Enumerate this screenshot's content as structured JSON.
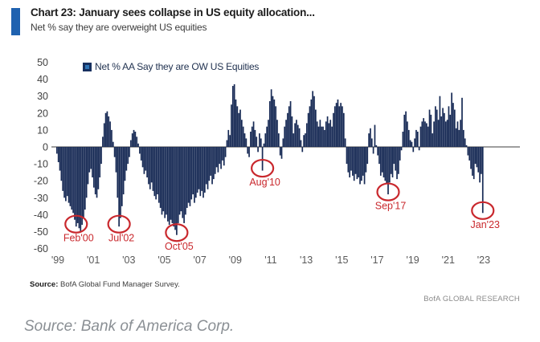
{
  "header": {
    "title": "Chart 23: January sees collapse in US equity allocation...",
    "subtitle": "Net % say they are overweight US equities"
  },
  "chart_data": {
    "type": "bar",
    "title": "Chart 23: January sees collapse in US equity allocation...",
    "subtitle": "Net % say they are overweight US equities",
    "legend": "Net % AA Say they are OW US Equities",
    "frequency": "monthly",
    "x_start": "1999-01",
    "x_end": "2023-01",
    "ylim": [
      -60,
      50
    ],
    "grid": "off",
    "legend_position": "top-center",
    "bar_color": "#172a55",
    "annotation_color": "#c9282d",
    "axis_line_color": "#7f7f7f",
    "yticks": [
      50,
      40,
      30,
      20,
      10,
      0,
      -10,
      -20,
      -30,
      -40,
      -50,
      -60
    ],
    "xtick_years": [
      1999,
      2001,
      2003,
      2005,
      2007,
      2009,
      2011,
      2013,
      2015,
      2017,
      2019,
      2021,
      2023
    ],
    "xtick_labels": [
      "'99",
      "'01",
      "'03",
      "'05",
      "'07",
      "'09",
      "'11",
      "'13",
      "'15",
      "'17",
      "'19",
      "'21",
      "'23"
    ],
    "values": [
      -4,
      -9,
      -14,
      -20,
      -26,
      -30,
      -32,
      -29,
      -33,
      -35,
      -37,
      -39,
      -43,
      -47,
      -45,
      -48,
      -50,
      -46,
      -42,
      -37,
      -30,
      -22,
      -15,
      -13,
      -18,
      -24,
      -28,
      -30,
      -25,
      -18,
      -10,
      6,
      14,
      20,
      21,
      18,
      15,
      10,
      3,
      -6,
      -15,
      -30,
      -47,
      -42,
      -35,
      -28,
      -20,
      -14,
      -10,
      -6,
      4,
      8,
      10,
      9,
      6,
      2,
      -4,
      -8,
      -12,
      -16,
      -14,
      -18,
      -22,
      -25,
      -21,
      -26,
      -29,
      -31,
      -28,
      -33,
      -36,
      -40,
      -38,
      -42,
      -40,
      -44,
      -46,
      -43,
      -45,
      -47,
      -49,
      -52,
      -45,
      -40,
      -38,
      -42,
      -45,
      -40,
      -36,
      -33,
      -35,
      -31,
      -28,
      -33,
      -30,
      -27,
      -25,
      -29,
      -26,
      -30,
      -27,
      -22,
      -25,
      -20,
      -17,
      -22,
      -19,
      -16,
      -12,
      -15,
      -10,
      -13,
      -8,
      -11,
      -6,
      4,
      10,
      7,
      25,
      36,
      37,
      28,
      24,
      20,
      22,
      16,
      12,
      8,
      5,
      -4,
      -6,
      9,
      12,
      15,
      10,
      6,
      -3,
      8,
      5,
      -14,
      2,
      8,
      12,
      16,
      27,
      34,
      30,
      28,
      24,
      16,
      8,
      -5,
      -7,
      5,
      12,
      16,
      20,
      24,
      27,
      18,
      8,
      14,
      16,
      13,
      11,
      4,
      -3,
      7,
      8,
      14,
      20,
      24,
      28,
      33,
      30,
      22,
      15,
      12,
      16,
      12,
      12,
      10,
      15,
      18,
      14,
      16,
      12,
      20,
      24,
      26,
      28,
      24,
      26,
      24,
      20,
      5,
      -10,
      -15,
      -18,
      -14,
      -17,
      -20,
      -16,
      -19,
      -18,
      -22,
      -20,
      -17,
      -22,
      -15,
      -10,
      8,
      11,
      5,
      -4,
      13,
      1,
      -5,
      -10,
      -17,
      -15,
      -18,
      -20,
      -22,
      -28,
      -21,
      -16,
      -18,
      -10,
      -14,
      -19,
      -16,
      -8,
      -2,
      9,
      19,
      21,
      15,
      10,
      4,
      3,
      -3,
      5,
      10,
      9,
      -2,
      12,
      15,
      17,
      15,
      14,
      12,
      22,
      19,
      8,
      15,
      24,
      22,
      16,
      30,
      18,
      23,
      20,
      15,
      16,
      24,
      19,
      32,
      26,
      22,
      11,
      15,
      10,
      16,
      29,
      10,
      5,
      1,
      -5,
      -8,
      -13,
      -17,
      -19,
      -10,
      -12,
      -15,
      -21,
      -16,
      -39
    ],
    "annotations": [
      {
        "label": "Feb'00",
        "month": "2000-02",
        "month_index": 13,
        "value": -47
      },
      {
        "label": "Jul'02",
        "month": "2002-07",
        "month_index": 42,
        "value": -47
      },
      {
        "label": "Oct'05",
        "month": "2005-10",
        "month_index": 81,
        "value": -52
      },
      {
        "label": "Aug'10",
        "month": "2010-08",
        "month_index": 139,
        "value": -14
      },
      {
        "label": "Sep'17",
        "month": "2017-09",
        "month_index": 224,
        "value": -28
      },
      {
        "label": "Jan'23",
        "month": "2023-01",
        "month_index": 288,
        "value": -39
      }
    ]
  },
  "footer": {
    "source_label": "Source:",
    "source_text": " BofA Global Fund Manager Survey.",
    "brand": "BofA GLOBAL RESEARCH"
  },
  "caption": "Source: Bank of America Corp."
}
